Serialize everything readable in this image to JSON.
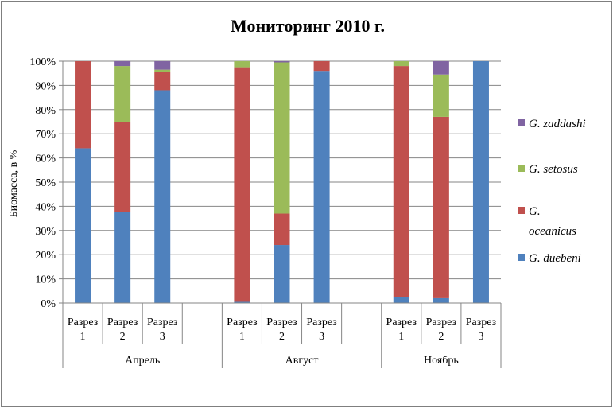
{
  "chart_data": {
    "type": "bar",
    "stacked": true,
    "percent": true,
    "title": "Мониторинг  2010 г.",
    "ylabel": "Биомасса, в %",
    "ylim": [
      0,
      100
    ],
    "yticks": [
      "0%",
      "10%",
      "20%",
      "30%",
      "40%",
      "50%",
      "60%",
      "70%",
      "80%",
      "90%",
      "100%"
    ],
    "grid": true,
    "legend_position": "right",
    "groups": [
      {
        "label": "Апрель",
        "categories": [
          [
            "Разрез",
            "1"
          ],
          [
            "Разрез",
            "2"
          ],
          [
            "Разрез",
            "3"
          ],
          [
            "",
            ""
          ]
        ]
      },
      {
        "label": "Август",
        "categories": [
          [
            "Разрез",
            "1"
          ],
          [
            "Разрез",
            "2"
          ],
          [
            "Разрез",
            "3"
          ],
          [
            "",
            ""
          ]
        ]
      },
      {
        "label": "Ноябрь",
        "categories": [
          [
            "Разрез",
            "1"
          ],
          [
            "Разрез",
            "2"
          ],
          [
            "Разрез",
            "3"
          ]
        ]
      }
    ],
    "series": [
      {
        "name": "G. duebeni",
        "color": "#4f81bd",
        "values": [
          64,
          37.5,
          88,
          null,
          0.5,
          24,
          96,
          null,
          2.5,
          2,
          100
        ]
      },
      {
        "name": "G. oceanicus",
        "color": "#c0504d",
        "values": [
          36,
          37.5,
          7.5,
          null,
          97,
          13,
          4,
          null,
          95.5,
          75,
          0
        ]
      },
      {
        "name": "G. setosus",
        "color": "#9bbb59",
        "values": [
          0,
          23,
          1,
          null,
          2.5,
          62.5,
          0,
          null,
          2,
          17.5,
          0
        ]
      },
      {
        "name": "G. zaddashi",
        "color": "#8064a2",
        "values": [
          0,
          2,
          3.5,
          null,
          0,
          0.5,
          0,
          null,
          0,
          5.5,
          0
        ]
      }
    ],
    "legend_order": [
      "G. zaddashi",
      "G. setosus",
      "G. oceanicus",
      "G. duebeni"
    ],
    "legend_lines": {
      "G. zaddashi": [
        "G. zaddashi"
      ],
      "G. setosus": [
        "G. setosus"
      ],
      "G. oceanicus": [
        "G.",
        "oceanicus"
      ],
      "G. duebeni": [
        "G. duebeni"
      ]
    }
  }
}
